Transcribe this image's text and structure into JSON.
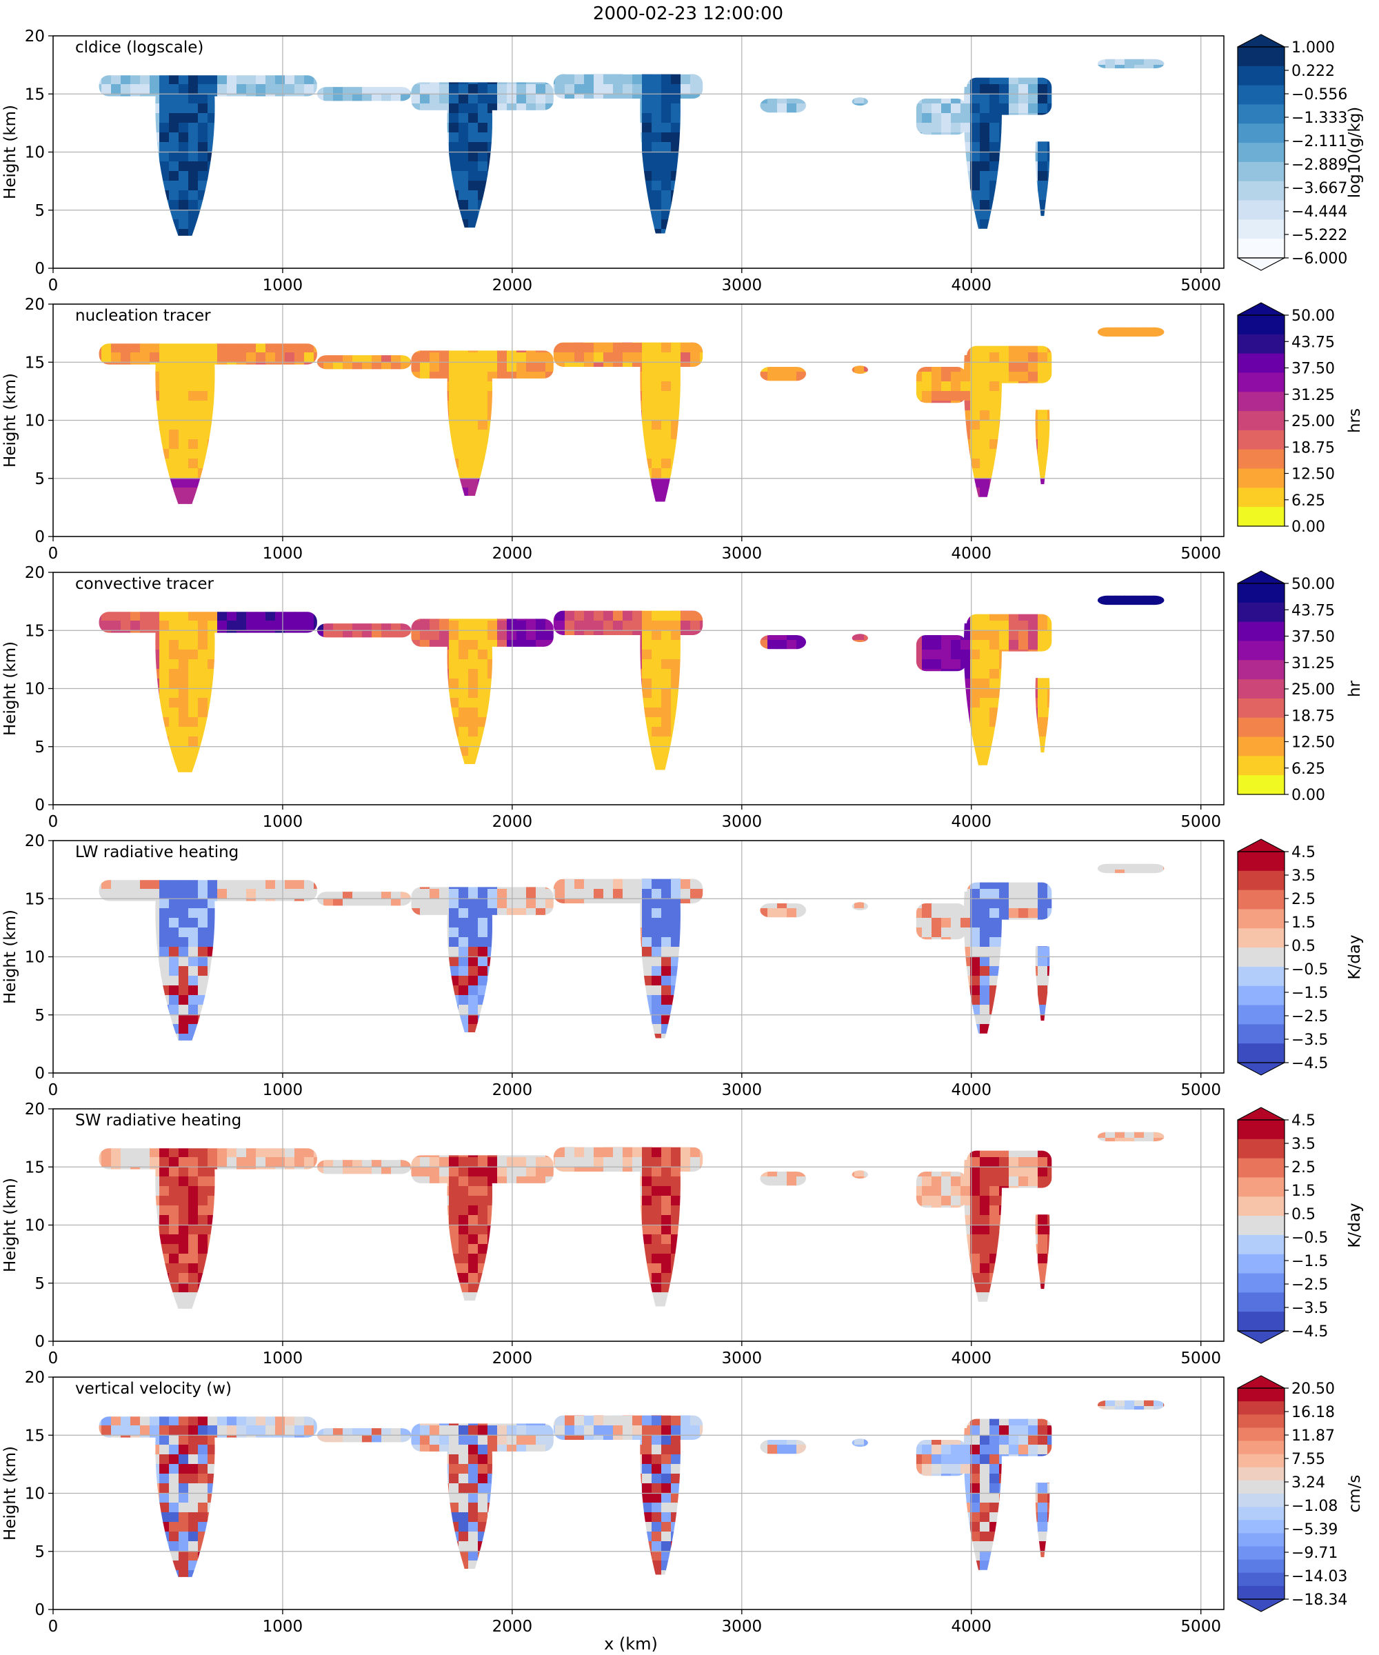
{
  "figure": {
    "title": "2000-02-23 12:00:00",
    "xlabel": "x (km)"
  },
  "chart_data": [
    {
      "type": "heatmap",
      "title": "cldice (logscale)",
      "ylabel": "Height (km)",
      "xlim": [
        0,
        5100
      ],
      "ylim": [
        0,
        20
      ],
      "xticks": [
        "0",
        "1000",
        "2000",
        "3000",
        "4000",
        "5000"
      ],
      "yticks": [
        "0",
        "5",
        "10",
        "15",
        "20"
      ],
      "grid": true,
      "colorbar": {
        "label": "log10(g/kg)",
        "ticks": [
          "1.000",
          "0.222",
          "−0.556",
          "−1.333",
          "−2.111",
          "−2.889",
          "−3.667",
          "−4.444",
          "−5.222",
          "−6.000"
        ],
        "extend": "both",
        "colors": [
          "#f7fbff",
          "#e3eef9",
          "#cfe1f2",
          "#b5d4e9",
          "#93c3df",
          "#6daed5",
          "#4b97c9",
          "#2f7ebc",
          "#1864aa",
          "#0a4a90",
          "#08306b"
        ]
      },
      "scheme": "blues"
    },
    {
      "type": "heatmap",
      "title": "nucleation tracer",
      "ylabel": "Height (km)",
      "xlim": [
        0,
        5100
      ],
      "ylim": [
        0,
        20
      ],
      "xticks": [
        "0",
        "1000",
        "2000",
        "3000",
        "4000",
        "5000"
      ],
      "yticks": [
        "0",
        "5",
        "10",
        "15",
        "20"
      ],
      "grid": true,
      "colorbar": {
        "label": "hrs",
        "ticks": [
          "50.00",
          "43.75",
          "37.50",
          "31.25",
          "25.00",
          "18.75",
          "12.50",
          "6.25",
          "0.00"
        ],
        "extend": "max",
        "colors": [
          "#f0f921",
          "#fcce25",
          "#fca636",
          "#f2844b",
          "#e16462",
          "#cc4778",
          "#b12a90",
          "#8f0da4",
          "#6a00a8",
          "#2b0e8c",
          "#0d0887"
        ]
      },
      "scheme": "plasma-nucleation"
    },
    {
      "type": "heatmap",
      "title": "convective tracer",
      "ylabel": "Height (km)",
      "xlim": [
        0,
        5100
      ],
      "ylim": [
        0,
        20
      ],
      "xticks": [
        "0",
        "1000",
        "2000",
        "3000",
        "4000",
        "5000"
      ],
      "yticks": [
        "0",
        "5",
        "10",
        "15",
        "20"
      ],
      "grid": true,
      "colorbar": {
        "label": "hr",
        "ticks": [
          "50.00",
          "43.75",
          "37.50",
          "31.25",
          "25.00",
          "18.75",
          "12.50",
          "6.25",
          "0.00"
        ],
        "extend": "max",
        "colors": [
          "#f0f921",
          "#fcce25",
          "#fca636",
          "#f2844b",
          "#e16462",
          "#cc4778",
          "#b12a90",
          "#8f0da4",
          "#6a00a8",
          "#2b0e8c",
          "#0d0887"
        ]
      },
      "scheme": "plasma-convective"
    },
    {
      "type": "heatmap",
      "title": "LW radiative heating",
      "ylabel": "Height (km)",
      "xlim": [
        0,
        5100
      ],
      "ylim": [
        0,
        20
      ],
      "xticks": [
        "0",
        "1000",
        "2000",
        "3000",
        "4000",
        "5000"
      ],
      "yticks": [
        "0",
        "5",
        "10",
        "15",
        "20"
      ],
      "grid": true,
      "colorbar": {
        "label": "K/day",
        "ticks": [
          "4.5",
          "3.5",
          "2.5",
          "1.5",
          "0.5",
          "−0.5",
          "−1.5",
          "−2.5",
          "−3.5",
          "−4.5"
        ],
        "extend": "both",
        "colors": [
          "#3b4cc0",
          "#5572df",
          "#6f92f3",
          "#90b2fe",
          "#b3cdfb",
          "#dddddd",
          "#f7c4a9",
          "#f5a081",
          "#e7745b",
          "#cd423b",
          "#b40426"
        ]
      },
      "scheme": "lw"
    },
    {
      "type": "heatmap",
      "title": "SW radiative heating",
      "ylabel": "Height (km)",
      "xlim": [
        0,
        5100
      ],
      "ylim": [
        0,
        20
      ],
      "xticks": [
        "0",
        "1000",
        "2000",
        "3000",
        "4000",
        "5000"
      ],
      "yticks": [
        "0",
        "5",
        "10",
        "15",
        "20"
      ],
      "grid": true,
      "colorbar": {
        "label": "K/day",
        "ticks": [
          "4.5",
          "3.5",
          "2.5",
          "1.5",
          "0.5",
          "−0.5",
          "−1.5",
          "−2.5",
          "−3.5",
          "−4.5"
        ],
        "extend": "both",
        "colors": [
          "#3b4cc0",
          "#5572df",
          "#6f92f3",
          "#90b2fe",
          "#b3cdfb",
          "#dddddd",
          "#f7c4a9",
          "#f5a081",
          "#e7745b",
          "#cd423b",
          "#b40426"
        ]
      },
      "scheme": "sw"
    },
    {
      "type": "heatmap",
      "title": "vertical velocity (w)",
      "ylabel": "Height (km)",
      "xlim": [
        0,
        5100
      ],
      "ylim": [
        0,
        20
      ],
      "xticks": [
        "0",
        "1000",
        "2000",
        "3000",
        "4000",
        "5000"
      ],
      "yticks": [
        "0",
        "5",
        "10",
        "15",
        "20"
      ],
      "grid": true,
      "colorbar": {
        "label": "cm/s",
        "ticks": [
          "20.50",
          "16.18",
          "11.87",
          "7.55",
          "3.24",
          "−1.08",
          "−5.39",
          "−9.71",
          "−14.03",
          "−18.34"
        ],
        "extend": "both",
        "colors": [
          "#3b4cc0",
          "#4a63d3",
          "#5b7be5",
          "#6f92f3",
          "#84a7fc",
          "#9abbff",
          "#b3cdfb",
          "#c8d7f0",
          "#dddddd",
          "#efcfbf",
          "#f7b89c",
          "#f59f80",
          "#ec8165",
          "#dd604d",
          "#c93d3a",
          "#b40426"
        ]
      },
      "scheme": "w"
    }
  ],
  "cloud_shape": {
    "bands": [
      {
        "x0": 200,
        "x1": 1150,
        "bottom": 14.8,
        "top": 16.6
      },
      {
        "x0": 1150,
        "x1": 1560,
        "bottom": 14.4,
        "top": 15.6
      },
      {
        "x0": 1560,
        "x1": 2180,
        "bottom": 13.6,
        "top": 16.0
      },
      {
        "x0": 2180,
        "x1": 2830,
        "bottom": 14.6,
        "top": 16.7
      },
      {
        "x0": 3080,
        "x1": 3280,
        "bottom": 13.4,
        "top": 14.6
      },
      {
        "x0": 3480,
        "x1": 3550,
        "bottom": 14.0,
        "top": 14.7
      },
      {
        "x0": 3760,
        "x1": 3980,
        "bottom": 11.5,
        "top": 14.6
      },
      {
        "x0": 3980,
        "x1": 4350,
        "bottom": 13.2,
        "top": 16.4
      },
      {
        "x0": 4550,
        "x1": 4840,
        "bottom": 17.2,
        "top": 18.0
      }
    ],
    "towers": [
      {
        "x0": 450,
        "x1": 700,
        "bottom": 2.8,
        "top": 16.8
      },
      {
        "x0": 1720,
        "x1": 1910,
        "bottom": 3.5,
        "top": 15.2
      },
      {
        "x0": 2560,
        "x1": 2730,
        "bottom": 3.0,
        "top": 16.5
      },
      {
        "x0": 3970,
        "x1": 4130,
        "bottom": 3.4,
        "top": 16.2
      },
      {
        "x0": 4280,
        "x1": 4340,
        "bottom": 4.5,
        "top": 11.5
      }
    ]
  }
}
